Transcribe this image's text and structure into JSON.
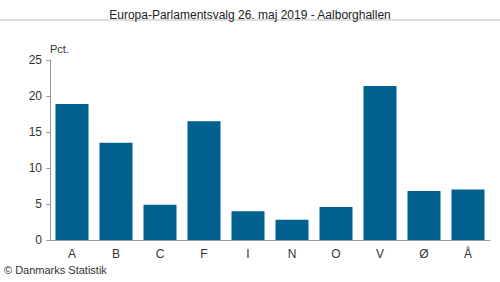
{
  "chart_data": {
    "type": "bar",
    "title": "Europa-Parlamentsvalg 26. maj 2019 - Aalborghallen",
    "y_label": "Pct.",
    "annotations": [
      "© Danmarks Statistik"
    ],
    "categories": [
      "A",
      "B",
      "C",
      "F",
      "I",
      "N",
      "O",
      "V",
      "Ø",
      "Å"
    ],
    "values": [
      18.9,
      13.5,
      4.9,
      16.5,
      4.0,
      2.8,
      4.6,
      21.4,
      6.8,
      7.0
    ],
    "color": "#00608f",
    "ylim": [
      0,
      25
    ],
    "yticks": [
      0,
      5,
      10,
      15,
      20,
      25
    ],
    "grid": false
  }
}
